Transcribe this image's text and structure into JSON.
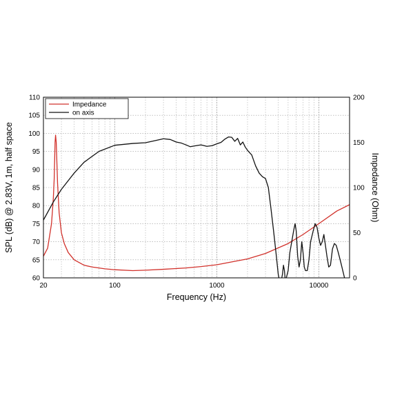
{
  "chart_data": {
    "type": "line",
    "xlabel": "Frequency (Hz)",
    "ylabel_left": "SPL (dB) @ 2.83V, 1m, half space",
    "ylabel_right": "Impedance (Ohm)",
    "x_scale": "log",
    "xlim": [
      20,
      20000
    ],
    "ylim_left": [
      60,
      110
    ],
    "ylim_right": [
      0,
      200
    ],
    "x_ticks": [
      {
        "value": 20,
        "label": "20"
      },
      {
        "value": 100,
        "label": "100"
      },
      {
        "value": 1000,
        "label": "1000"
      },
      {
        "value": 10000,
        "label": "10000"
      }
    ],
    "y_ticks_left": [
      {
        "value": 60,
        "label": "60"
      },
      {
        "value": 65,
        "label": "65"
      },
      {
        "value": 70,
        "label": "70"
      },
      {
        "value": 75,
        "label": "75"
      },
      {
        "value": 80,
        "label": "80"
      },
      {
        "value": 85,
        "label": "85"
      },
      {
        "value": 90,
        "label": "90"
      },
      {
        "value": 95,
        "label": "95"
      },
      {
        "value": 100,
        "label": "100"
      },
      {
        "value": 105,
        "label": "105"
      },
      {
        "value": 110,
        "label": "110"
      }
    ],
    "y_ticks_right": [
      {
        "value": 0,
        "label": "0"
      },
      {
        "value": 50,
        "label": "50"
      },
      {
        "value": 100,
        "label": "100"
      },
      {
        "value": 150,
        "label": "150"
      },
      {
        "value": 200,
        "label": "200"
      }
    ],
    "grid": true,
    "legend_position": "top-left",
    "series": [
      {
        "name": "Impedance",
        "color": "#d1302a",
        "axis": "right",
        "points": [
          [
            20,
            24
          ],
          [
            22,
            33
          ],
          [
            24,
            60
          ],
          [
            25,
            88
          ],
          [
            25.5,
            110
          ],
          [
            26,
            150
          ],
          [
            26.3,
            158
          ],
          [
            26.7,
            150
          ],
          [
            27.5,
            105
          ],
          [
            28.5,
            72
          ],
          [
            30,
            50
          ],
          [
            32,
            38
          ],
          [
            35,
            28
          ],
          [
            40,
            20
          ],
          [
            50,
            14
          ],
          [
            60,
            12
          ],
          [
            80,
            10
          ],
          [
            100,
            9
          ],
          [
            150,
            8
          ],
          [
            200,
            8.5
          ],
          [
            300,
            9.5
          ],
          [
            500,
            11
          ],
          [
            700,
            12.5
          ],
          [
            1000,
            14.5
          ],
          [
            2000,
            21
          ],
          [
            3000,
            27
          ],
          [
            5000,
            38
          ],
          [
            7000,
            48
          ],
          [
            10000,
            60
          ],
          [
            15000,
            74
          ],
          [
            20000,
            81
          ]
        ]
      },
      {
        "name": "on axis",
        "color": "#111111",
        "axis": "left",
        "points": [
          [
            20,
            76
          ],
          [
            25,
            81
          ],
          [
            30,
            84.5
          ],
          [
            40,
            89
          ],
          [
            50,
            92
          ],
          [
            70,
            95
          ],
          [
            100,
            96.7
          ],
          [
            150,
            97.2
          ],
          [
            200,
            97.4
          ],
          [
            250,
            98
          ],
          [
            300,
            98.5
          ],
          [
            350,
            98.3
          ],
          [
            400,
            97.6
          ],
          [
            450,
            97.3
          ],
          [
            500,
            96.8
          ],
          [
            550,
            96.3
          ],
          [
            600,
            96.5
          ],
          [
            700,
            96.8
          ],
          [
            800,
            96.4
          ],
          [
            900,
            96.6
          ],
          [
            1000,
            97.1
          ],
          [
            1100,
            97.5
          ],
          [
            1200,
            98.4
          ],
          [
            1300,
            99
          ],
          [
            1400,
            98.9
          ],
          [
            1500,
            97.8
          ],
          [
            1600,
            98.6
          ],
          [
            1700,
            96.8
          ],
          [
            1800,
            97.6
          ],
          [
            1900,
            96.2
          ],
          [
            2000,
            95.3
          ],
          [
            2200,
            94
          ],
          [
            2400,
            91
          ],
          [
            2600,
            89
          ],
          [
            2800,
            88
          ],
          [
            3000,
            87.5
          ],
          [
            3200,
            85
          ],
          [
            3400,
            79
          ],
          [
            3600,
            73
          ],
          [
            3800,
            67
          ],
          [
            4000,
            61
          ],
          [
            4200,
            58
          ],
          [
            4400,
            61
          ],
          [
            4500,
            63.5
          ],
          [
            4600,
            62
          ],
          [
            4700,
            59
          ],
          [
            5000,
            62
          ],
          [
            5200,
            67
          ],
          [
            5500,
            71
          ],
          [
            5700,
            73.5
          ],
          [
            5850,
            75
          ],
          [
            6000,
            73
          ],
          [
            6200,
            66
          ],
          [
            6400,
            63
          ],
          [
            6600,
            65
          ],
          [
            6800,
            70
          ],
          [
            7000,
            67
          ],
          [
            7200,
            63
          ],
          [
            7400,
            62
          ],
          [
            7700,
            62
          ],
          [
            8000,
            65
          ],
          [
            8300,
            70
          ],
          [
            8800,
            73
          ],
          [
            9200,
            75
          ],
          [
            9600,
            74
          ],
          [
            10000,
            71
          ],
          [
            10400,
            69
          ],
          [
            10800,
            70
          ],
          [
            11200,
            72
          ],
          [
            11600,
            69
          ],
          [
            12000,
            66
          ],
          [
            12500,
            63
          ],
          [
            13000,
            63.5
          ],
          [
            13600,
            68
          ],
          [
            14200,
            69.5
          ],
          [
            14800,
            69
          ],
          [
            15500,
            67
          ],
          [
            16500,
            64
          ],
          [
            17500,
            61
          ],
          [
            18200,
            59
          ]
        ]
      }
    ]
  }
}
